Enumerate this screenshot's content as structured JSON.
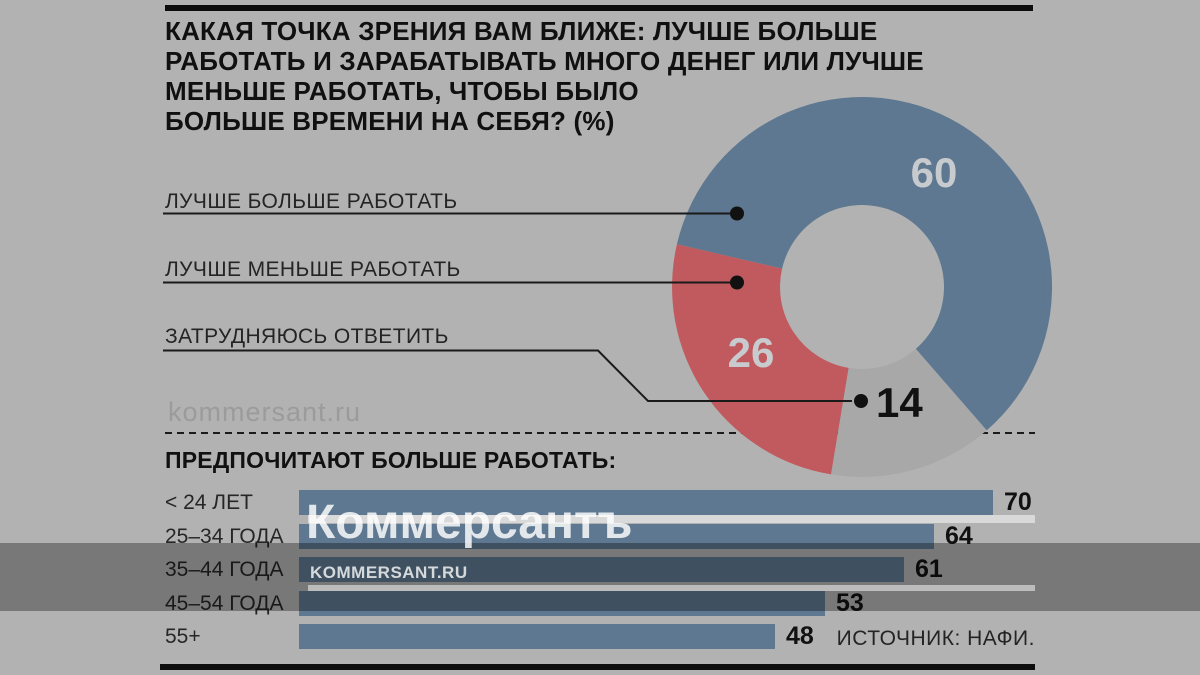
{
  "page": {
    "background_color": "#b2b2b2",
    "rule_color": "#0d0d0d",
    "dim_band_color": "rgba(0,0,0,0.32)"
  },
  "title": {
    "lines": [
      "КАКАЯ ТОЧКА ЗРЕНИЯ ВАМ БЛИЖЕ: ЛУЧШЕ БОЛЬШЕ",
      "РАБОТАТЬ И ЗАРАБАТЫВАТЬ МНОГО ДЕНЕГ ИЛИ ЛУЧШЕ",
      "МЕНЬШЕ РАБОТАТЬ, ЧТОБЫ БЫЛО",
      "БОЛЬШЕ ВРЕМЕНИ НА СЕБЯ? (%)"
    ]
  },
  "watermarks": {
    "small_text": "kommersant.ru",
    "logo_text": "Коммерсантъ",
    "logo_sub_text": "KOMMERSANT.RU"
  },
  "source": {
    "label": "ИСТОЧНИК: НАФИ."
  },
  "chart_data": [
    {
      "type": "pie",
      "donut": true,
      "unit": "%",
      "title": "КАКАЯ ТОЧКА ЗРЕНИЯ ВАМ БЛИЖЕ: ЛУЧШЕ БОЛЬШЕ РАБОТАТЬ И ЗАРАБАТЫВАТЬ МНОГО ДЕНЕГ ИЛИ ЛУЧШЕ МЕНЬШЕ РАБОТАТЬ, ЧТОБЫ БЫЛО БОЛЬШЕ ВРЕМЕНИ НА СЕБЯ? (%)",
      "segments": [
        {
          "label": "ЛУЧШЕ БОЛЬШЕ РАБОТАТЬ",
          "value": 60,
          "color": "#5d7890",
          "value_label_color": "#c8cbce"
        },
        {
          "label": "ЛУЧШЕ МЕНЬШЕ РАБОТАТЬ",
          "value": 26,
          "color": "#c15a5e",
          "value_label_color": "#c8cbce"
        },
        {
          "label": "ЗАТРУДНЯЮСЬ ОТВЕТИТЬ",
          "value": 14,
          "color": "#a8a8a8",
          "value_label_color": "#111111"
        }
      ],
      "start_angle_deg": 283,
      "clockwise_draw_order": [
        0,
        2,
        1
      ],
      "legend_position": "left"
    },
    {
      "type": "bar",
      "orientation": "horizontal",
      "title": "ПРЕДПОЧИТАЮТ БОЛЬШЕ РАБОТАТЬ:",
      "categories": [
        "< 24 ЛЕТ",
        "25–34 ГОДА",
        "35–44 ГОДА",
        "45–54 ГОДА",
        "55+"
      ],
      "values": [
        70,
        64,
        61,
        53,
        48
      ],
      "unit": "%",
      "bar_color": "#5d7890",
      "xlim": [
        0,
        74
      ],
      "grid": false,
      "value_labels": "end-of-bar"
    }
  ]
}
